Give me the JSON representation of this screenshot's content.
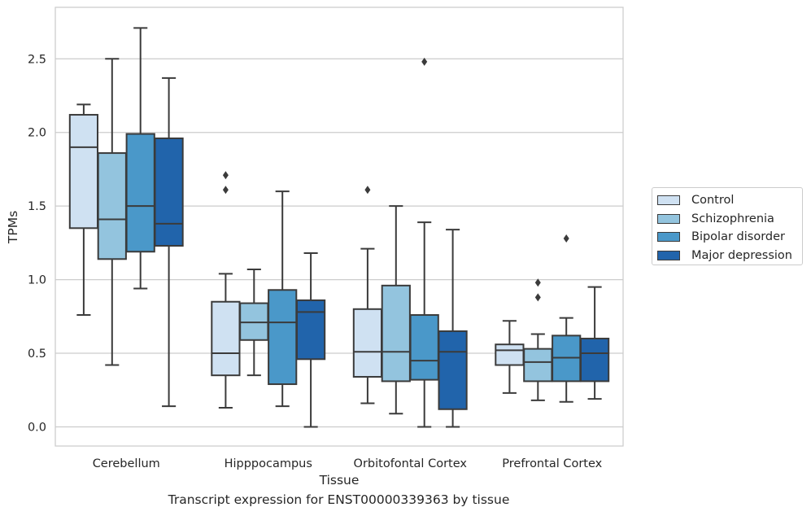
{
  "chart_data": {
    "type": "box",
    "caption": "Transcript expression for ENST00000339363 by tissue",
    "xlabel": "Tissue",
    "ylabel": "TPMs",
    "ylim": [
      -0.13,
      2.85
    ],
    "yticks": [
      "0.0",
      "0.5",
      "1.0",
      "1.5",
      "2.0",
      "2.5"
    ],
    "grid": "horizontal",
    "legend_position": "right",
    "categories": [
      "Cerebellum",
      "Hipppocampus",
      "Orbitofontal Cortex",
      "Prefrontal Cortex"
    ],
    "series": [
      {
        "name": "Control",
        "color": "#cfe1f2",
        "boxes": [
          {
            "whislo": 0.76,
            "q1": 1.35,
            "med": 1.9,
            "q3": 2.12,
            "whishi": 2.19,
            "fliers": []
          },
          {
            "whislo": 0.13,
            "q1": 0.35,
            "med": 0.5,
            "q3": 0.85,
            "whishi": 1.04,
            "fliers": [
              1.61,
              1.71
            ]
          },
          {
            "whislo": 0.16,
            "q1": 0.34,
            "med": 0.51,
            "q3": 0.8,
            "whishi": 1.21,
            "fliers": [
              1.61
            ]
          },
          {
            "whislo": 0.23,
            "q1": 0.42,
            "med": 0.52,
            "q3": 0.56,
            "whishi": 0.72,
            "fliers": []
          }
        ]
      },
      {
        "name": "Schizophrenia",
        "color": "#93c4de",
        "boxes": [
          {
            "whislo": 0.42,
            "q1": 1.14,
            "med": 1.41,
            "q3": 1.86,
            "whishi": 2.5,
            "fliers": []
          },
          {
            "whislo": 0.35,
            "q1": 0.59,
            "med": 0.71,
            "q3": 0.84,
            "whishi": 1.07,
            "fliers": []
          },
          {
            "whislo": 0.09,
            "q1": 0.31,
            "med": 0.51,
            "q3": 0.96,
            "whishi": 1.5,
            "fliers": []
          },
          {
            "whislo": 0.18,
            "q1": 0.31,
            "med": 0.44,
            "q3": 0.53,
            "whishi": 0.63,
            "fliers": [
              0.88,
              0.98
            ]
          }
        ]
      },
      {
        "name": "Bipolar disorder",
        "color": "#4a98c9",
        "boxes": [
          {
            "whislo": 0.94,
            "q1": 1.19,
            "med": 1.5,
            "q3": 1.99,
            "whishi": 2.71,
            "fliers": []
          },
          {
            "whislo": 0.14,
            "q1": 0.29,
            "med": 0.71,
            "q3": 0.93,
            "whishi": 1.6,
            "fliers": []
          },
          {
            "whislo": 0.0,
            "q1": 0.32,
            "med": 0.45,
            "q3": 0.76,
            "whishi": 1.39,
            "fliers": [
              2.48
            ]
          },
          {
            "whislo": 0.17,
            "q1": 0.31,
            "med": 0.47,
            "q3": 0.62,
            "whishi": 0.74,
            "fliers": [
              1.28
            ]
          }
        ]
      },
      {
        "name": "Major depression",
        "color": "#2164ab",
        "boxes": [
          {
            "whislo": 0.14,
            "q1": 1.23,
            "med": 1.38,
            "q3": 1.96,
            "whishi": 2.37,
            "fliers": []
          },
          {
            "whislo": 0.0,
            "q1": 0.46,
            "med": 0.78,
            "q3": 0.86,
            "whishi": 1.18,
            "fliers": []
          },
          {
            "whislo": 0.0,
            "q1": 0.12,
            "med": 0.51,
            "q3": 0.65,
            "whishi": 1.34,
            "fliers": []
          },
          {
            "whislo": 0.19,
            "q1": 0.31,
            "med": 0.5,
            "q3": 0.6,
            "whishi": 0.95,
            "fliers": []
          }
        ]
      }
    ]
  }
}
